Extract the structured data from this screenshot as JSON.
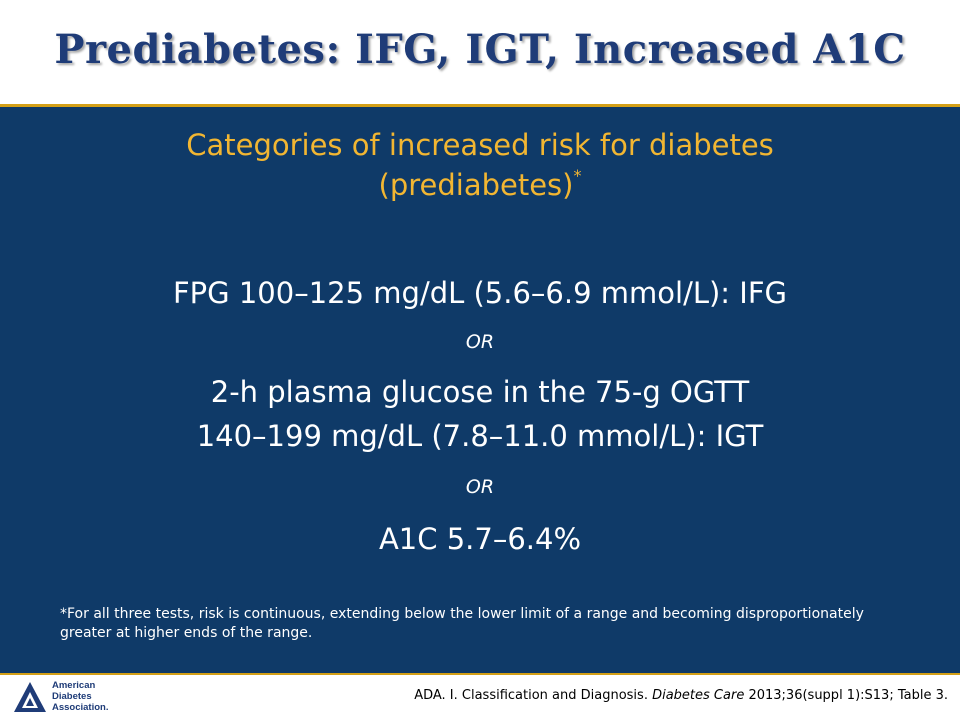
{
  "slide": {
    "title": "Prediabetes: IFG, IGT, Increased A1C",
    "subtitle_line1": "Categories of increased risk for diabetes",
    "subtitle_line2": "(prediabetes)",
    "subtitle_marker": "*",
    "criteria": {
      "fpg": "FPG 100–125 mg/dL (5.6–6.9 mmol/L): IFG",
      "or_1": "OR",
      "ogtt_line1": "2-h plasma glucose in the 75-g OGTT",
      "ogtt_line2": "140–199 mg/dL (7.8–11.0 mmol/L): IGT",
      "or_2": "OR",
      "a1c": "A1C 5.7–6.4%"
    },
    "footnote": "*For all three tests, risk is continuous, extending below the lower limit of a range and becoming disproportionately greater at higher ends of the range."
  },
  "footer": {
    "logo_lines": [
      "American",
      "Diabetes",
      "Association."
    ],
    "citation_pre": "ADA. I. Classification and Diagnosis.",
    "citation_journal": "Diabetes Care",
    "citation_post": "2013;36(suppl 1):S13; Table 3."
  },
  "colors": {
    "title": "#1f3c78",
    "panel": "#0f3a68",
    "accent_gold": "#f2b632",
    "rule_gold": "#d4a017"
  }
}
